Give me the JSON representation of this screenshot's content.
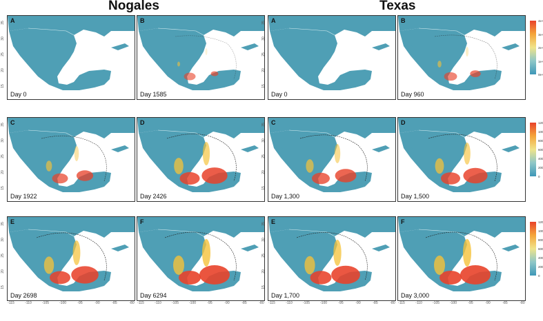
{
  "titles": {
    "left": "Nogales",
    "right": "Texas"
  },
  "colors": {
    "land": "#4f9fb5",
    "high": "#e8422a",
    "mid": "#f5c23a",
    "ocean": "#ffffff"
  },
  "panels": [
    {
      "letter": "A",
      "day": "Day 0"
    },
    {
      "letter": "B",
      "day": "Day 1585"
    },
    {
      "letter": "A",
      "day": "Day 0"
    },
    {
      "letter": "B",
      "day": "Day 960"
    },
    {
      "letter": "C",
      "day": "Day 1922"
    },
    {
      "letter": "D",
      "day": "Day 2426"
    },
    {
      "letter": "C",
      "day": "Day 1,300"
    },
    {
      "letter": "D",
      "day": "Day 1,500"
    },
    {
      "letter": "E",
      "day": "Day 2698"
    },
    {
      "letter": "F",
      "day": "Day 6294"
    },
    {
      "letter": "E",
      "day": "Day 1,700"
    },
    {
      "letter": "F",
      "day": "Day 3,000"
    }
  ],
  "y_ticks": [
    "35",
    "30",
    "25",
    "20",
    "15"
  ],
  "x_ticks": [
    "-115",
    "-110",
    "-105",
    "-100",
    "-95",
    "-90",
    "-85",
    "-80"
  ],
  "legends": [
    {
      "labels": [
        "4e+05",
        "3e+05",
        "2e+05",
        "1e+05",
        "0e+00"
      ]
    },
    {
      "labels": [
        "1200000",
        "1000000",
        "800000",
        "600000",
        "400000",
        "200000",
        "0"
      ]
    },
    {
      "labels": [
        "1200000",
        "1000000",
        "800000",
        "600000",
        "400000",
        "200000",
        "0"
      ]
    }
  ]
}
